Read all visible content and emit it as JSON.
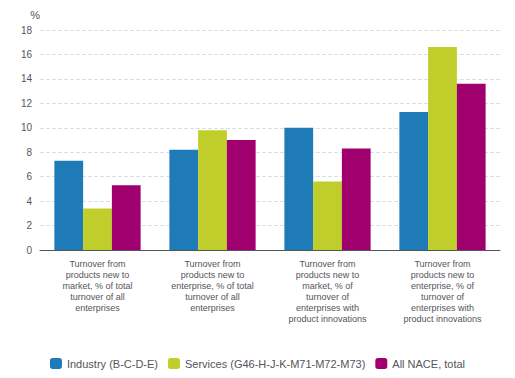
{
  "chart_data": {
    "type": "bar",
    "ylabel": "%",
    "categories": [
      "Turnover from\nproducts new to\nmarket, % of total\nturnover of all\nenterprises",
      "Turnover from\nproducts new to\nenterprise, % of total\nturnover of all\nenterprises",
      "Turnover from\nproducts new to\nmarket, % of\nturnover of\nenterprises with\nproduct innovations",
      "Turnover from\nproducts new to\nenterprise, % of\nturnover of\nenterprises with\nproduct innovations"
    ],
    "series": [
      {
        "name": "Industry (B-C-D-E)",
        "color": "#1F7BB8",
        "values": [
          7.3,
          8.2,
          10.0,
          11.3
        ]
      },
      {
        "name": "Services (G46-H-J-K-M71-M72-M73)",
        "color": "#BFCE2B",
        "values": [
          3.4,
          9.8,
          5.6,
          16.6
        ]
      },
      {
        "name": "All NACE, total",
        "color": "#A0006E",
        "values": [
          5.3,
          9.0,
          8.3,
          13.6
        ]
      }
    ],
    "ylim": [
      0,
      18
    ],
    "yticks": [
      0,
      2,
      4,
      6,
      8,
      10,
      12,
      14,
      16,
      18
    ],
    "grid": true,
    "legend": "bottom"
  }
}
